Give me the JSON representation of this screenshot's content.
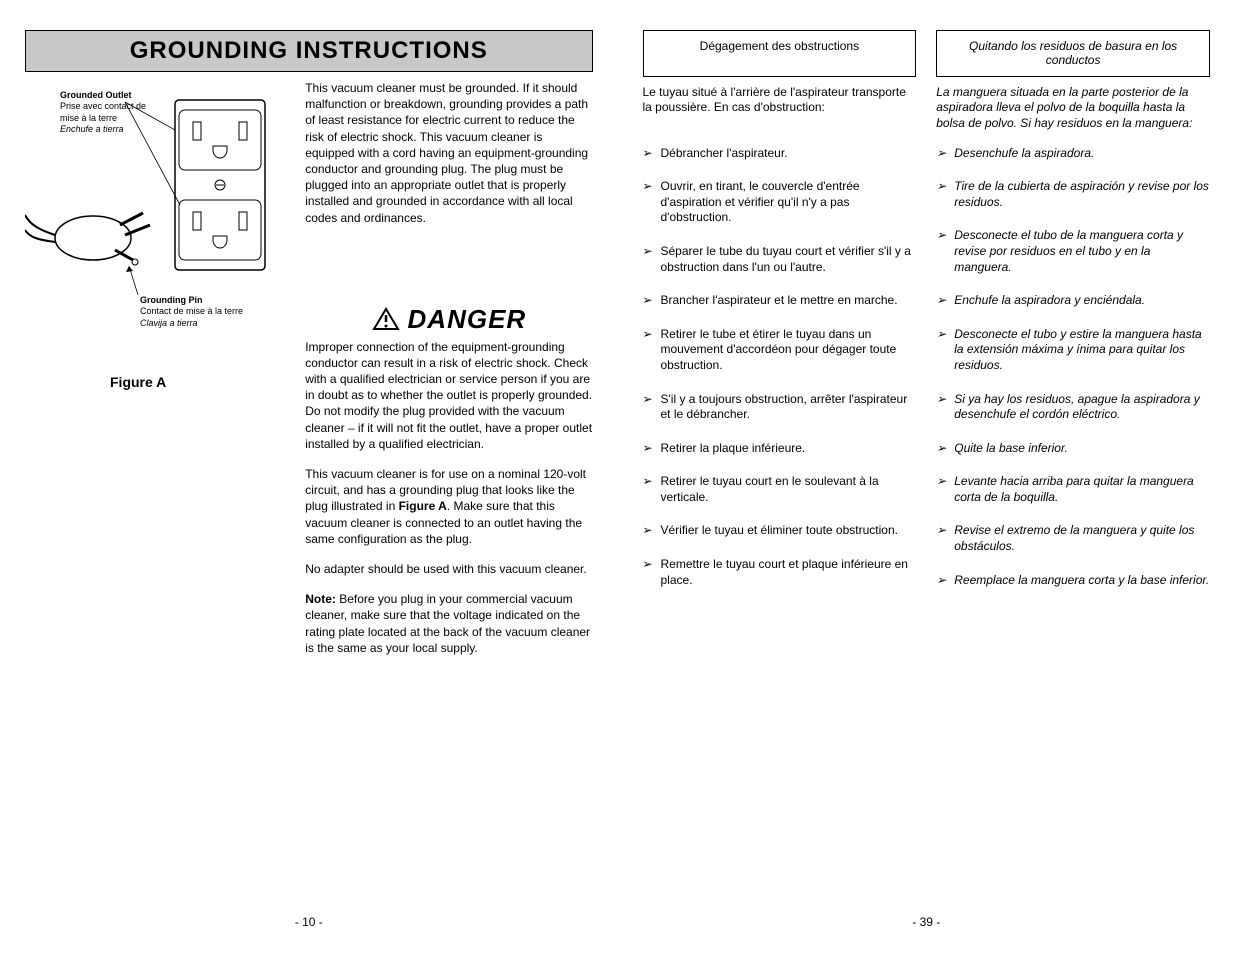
{
  "left": {
    "header": "GROUNDING INSTRUCTIONS",
    "outlet_label": {
      "bold": "Grounded Outlet",
      "fr": "Prise avec contact de mise à la terre",
      "es": "Enchufe a tierra"
    },
    "pin_label": {
      "bold": "Grounding Pin",
      "fr": "Contact de mise à la terre",
      "es": "Clavija a tierra"
    },
    "figure": "Figure A",
    "p1": "This vacuum cleaner must be grounded. If it should malfunction or breakdown, grounding provides a path of least resistance for electric current to reduce the risk of electric shock. This vacuum cleaner is equipped with a cord having an equipment-grounding conductor and grounding plug. The plug must be plugged into an appropriate outlet that is properly installed and grounded in accordance with all local codes and ordinances.",
    "danger": "DANGER",
    "p2": "Improper connection of the equipment-grounding conductor can result in a risk of electric shock. Check with a qualified electrician or service person if you are in doubt as to whether the outlet is properly grounded. Do not modify the plug provided with the vacuum cleaner – if it will not fit the outlet, have a proper outlet installed by a qualified electrician.",
    "p3a": "This vacuum cleaner is for use on a nominal 120-volt circuit, and has a grounding plug that looks like the plug illustrated in ",
    "p3b": "Figure A",
    "p3c": ". Make sure that this vacuum cleaner is connected to an outlet having the same configuration as the plug.",
    "p4": "No adapter should be used with this vacuum cleaner.",
    "p5a": "Note:",
    "p5b": "  Before you plug in your commercial vacuum cleaner, make sure that the voltage indicated on the rating plate located at the back of the vacuum cleaner is the same as your local supply.",
    "page_num": "- 10 -"
  },
  "right": {
    "subhead_fr": "Dégagement des obstructions",
    "subhead_es": "Quitando los residuos de basura en los conductos",
    "intro_fr": "Le tuyau situé à l'arrière de l'aspirateur transporte la poussière. En cas d'obstruction:",
    "intro_es": "La manguera situada en la parte posterior de la aspiradora lleva el polvo de la boquilla hasta la bolsa de polvo. Si hay residuos en la manguera:",
    "fr_items": [
      "Débrancher l'aspirateur.",
      "Ouvrir, en tirant, le couvercle d'entrée d'aspiration et vérifier qu'il n'y a pas d'obstruction.",
      "Séparer le tube du tuyau court et vérifier s'il y a obstruction dans l'un ou l'autre.",
      "Brancher l'aspirateur et le mettre en marche.",
      "Retirer le tube et étirer le tuyau dans un mouvement d'accordéon pour dégager toute obstruction.",
      "S'il y a toujours obstruction, arrêter l'aspirateur et le débrancher.",
      "Retirer la plaque inférieure.",
      "Retirer le tuyau court en le soulevant à la verticale.",
      "Vérifier le tuyau et éliminer toute obstruction.",
      "Remettre le tuyau court et plaque inférieure en place."
    ],
    "es_items": [
      "Desenchufe la aspiradora.",
      "Tire de la cubierta de aspiración y revise por los residuos.",
      "Desconecte el tubo de la manguera corta y revise por residuos en el tubo y en la manguera.",
      "Enchufe la aspiradora y enciéndala.",
      "Desconecte el tubo y estire la manguera hasta la extensión máxima y ínima para quitar los residuos.",
      "Si ya hay los residuos, apague la aspiradora y desenchufe el cordón eléctrico.",
      "Quite la base inferior.",
      "Levante hacia arriba para quitar la manguera corta de la boquilla.",
      "Revise el extremo de la manguera y quite los obstáculos.",
      "Reemplace la manguera corta y la base inferior."
    ],
    "page_num": "- 39 -"
  },
  "style": {
    "bg": "#ffffff",
    "header_bg": "#c8c8c8",
    "text": "#000000",
    "body_fontsize": 12,
    "header_fontsize": 24,
    "danger_fontsize": 26,
    "label_fontsize": 9
  }
}
